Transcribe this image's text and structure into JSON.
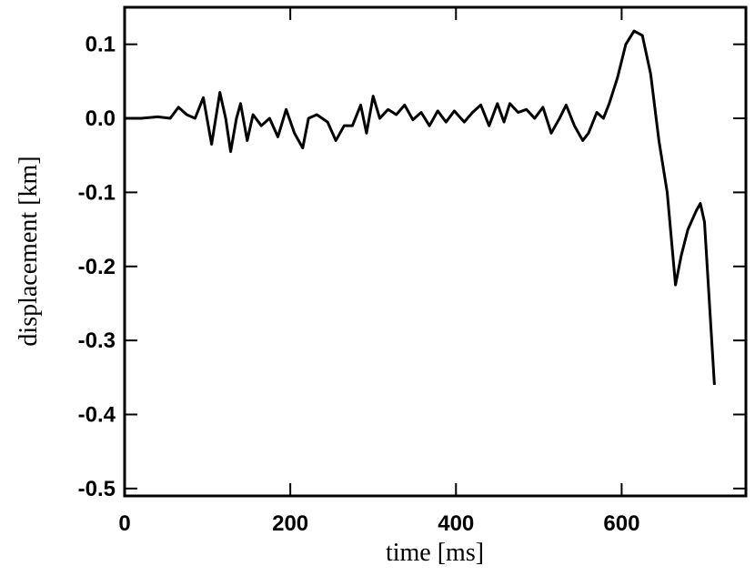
{
  "chart_data": {
    "type": "line",
    "xlabel": "time [ms]",
    "ylabel": "displacement [km]",
    "xlim": [
      0,
      750
    ],
    "ylim": [
      -0.51,
      0.15
    ],
    "xticks": [
      0,
      200,
      400,
      600
    ],
    "yticks": [
      0.1,
      {
        "value": 0,
        "label": "0.0"
      },
      -0.1,
      -0.2,
      -0.3,
      -0.4,
      -0.5
    ],
    "x": [
      0,
      20,
      40,
      55,
      65,
      75,
      85,
      95,
      105,
      115,
      122,
      128,
      135,
      140,
      148,
      155,
      165,
      175,
      185,
      195,
      205,
      215,
      222,
      232,
      245,
      255,
      265,
      275,
      285,
      292,
      300,
      308,
      318,
      328,
      338,
      348,
      358,
      368,
      378,
      388,
      398,
      410,
      420,
      430,
      440,
      450,
      458,
      465,
      475,
      485,
      495,
      505,
      515,
      525,
      533,
      543,
      553,
      560,
      570,
      578,
      585,
      595,
      605,
      615,
      625,
      635,
      645,
      655,
      665,
      672,
      680,
      690,
      695,
      700,
      706,
      712
    ],
    "series": [
      {
        "color": "#000000",
        "values": [
          0,
          0,
          0.002,
          0,
          0.015,
          0.005,
          0,
          0.028,
          -0.035,
          0.035,
          0,
          -0.045,
          0,
          0.02,
          -0.03,
          0.005,
          -0.01,
          0,
          -0.025,
          0.012,
          -0.02,
          -0.04,
          0,
          0.005,
          -0.005,
          -0.03,
          -0.01,
          -0.01,
          0.018,
          -0.02,
          0.03,
          0,
          0.012,
          0.005,
          0.018,
          -0.002,
          0.008,
          -0.01,
          0.01,
          -0.005,
          0.01,
          -0.005,
          0.008,
          0.018,
          -0.01,
          0.02,
          -0.005,
          0.02,
          0.008,
          0.012,
          0,
          0.015,
          -0.02,
          0,
          0.018,
          -0.01,
          -0.03,
          -0.02,
          0.008,
          0,
          0.02,
          0.055,
          0.1,
          0.118,
          0.112,
          0.06,
          -0.03,
          -0.1,
          -0.225,
          -0.185,
          -0.15,
          -0.125,
          -0.115,
          -0.14,
          -0.25,
          -0.36
        ]
      }
    ]
  }
}
